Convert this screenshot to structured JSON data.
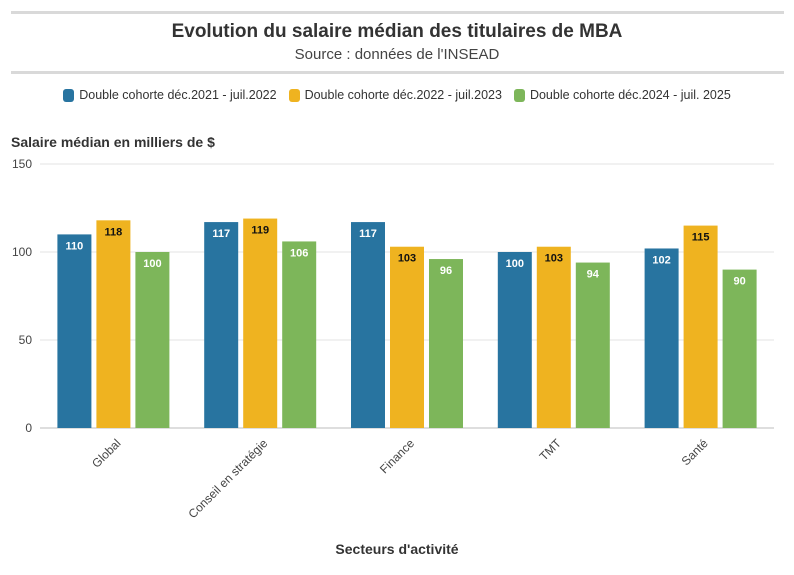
{
  "chart_data": {
    "type": "bar",
    "title": "Evolution du salaire médian des titulaires de MBA",
    "subtitle": "Source : données de l'INSEAD",
    "xlabel": "Secteurs d'activité",
    "ylabel": "Salaire médian en milliers de $",
    "ylim": [
      0,
      150
    ],
    "yticks": [
      0,
      50,
      100,
      150
    ],
    "grid": true,
    "legend_position": "top",
    "categories": [
      "Global",
      "Conseil en stratégie",
      "Finance",
      "TMT",
      "Santé"
    ],
    "series": [
      {
        "name": "Double cohorte déc.2021 - juil.2022",
        "color": "#2874a0",
        "label_color": "#ffffff",
        "values": [
          110,
          117,
          117,
          100,
          102
        ]
      },
      {
        "name": "Double cohorte déc.2022 - juil.2023",
        "color": "#efb320",
        "label_color": "#111111",
        "values": [
          118,
          119,
          103,
          103,
          115
        ]
      },
      {
        "name": "Double cohorte déc.2024 - juil. 2025",
        "color": "#7db65a",
        "label_color": "#ffffff",
        "values": [
          100,
          106,
          96,
          94,
          90
        ]
      }
    ]
  }
}
